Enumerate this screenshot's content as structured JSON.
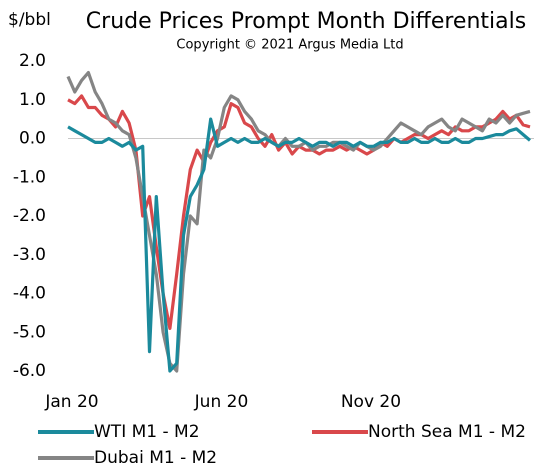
{
  "chart_data": {
    "type": "line",
    "title": "Crude Prices Prompt Month Differentials",
    "subtitle": "Copyright © 2021 Argus Media Ltd",
    "y_label": "$/bbl",
    "categories": [
      "Jan 20",
      null,
      null,
      null,
      null,
      null,
      null,
      null,
      null,
      null,
      null,
      null,
      null,
      null,
      null,
      null,
      null,
      null,
      null,
      null,
      null,
      null,
      "Jun 20",
      null,
      null,
      null,
      null,
      null,
      null,
      null,
      null,
      null,
      null,
      null,
      null,
      null,
      null,
      null,
      null,
      null,
      null,
      null,
      null,
      null,
      "Nov 20",
      null,
      null,
      null,
      null,
      null,
      null,
      null,
      null,
      null,
      null,
      null,
      null,
      null,
      null,
      null,
      null,
      null,
      null,
      null,
      null,
      null,
      null,
      null,
      null
    ],
    "ylim": [
      -6,
      2
    ],
    "yticks": [
      {
        "value": -6,
        "label": "-6.0"
      },
      {
        "value": -5,
        "label": "-5.0"
      },
      {
        "value": -4,
        "label": "-4.0"
      },
      {
        "value": -3,
        "label": "-3.0"
      },
      {
        "value": -2,
        "label": "-2.0"
      },
      {
        "value": -1,
        "label": "-1.0"
      },
      {
        "value": 0,
        "label": "0.0"
      },
      {
        "value": 1,
        "label": "1.0"
      },
      {
        "value": 2,
        "label": "2.0"
      }
    ],
    "grid": false,
    "series": [
      {
        "name": "WTI M1 - M2",
        "color": "#1b8a9c",
        "values": [
          0.3,
          0.2,
          0.1,
          0.0,
          -0.1,
          -0.1,
          0.0,
          -0.1,
          -0.2,
          -0.1,
          -0.3,
          -0.2,
          -5.5,
          -1.5,
          -4.0,
          -6.0,
          -5.8,
          -2.5,
          -1.5,
          -1.2,
          -0.8,
          0.5,
          -0.2,
          -0.1,
          0.0,
          -0.1,
          0.0,
          -0.1,
          -0.1,
          0.0,
          -0.1,
          -0.2,
          -0.1,
          -0.1,
          0.0,
          -0.1,
          -0.2,
          -0.1,
          -0.1,
          -0.2,
          -0.1,
          -0.1,
          -0.2,
          -0.1,
          -0.2,
          -0.2,
          -0.1,
          -0.1,
          0.0,
          -0.1,
          -0.1,
          0.0,
          -0.1,
          -0.1,
          0.0,
          -0.1,
          -0.1,
          0.0,
          -0.1,
          -0.1,
          0.0,
          0.0,
          0.05,
          0.1,
          0.1,
          0.2,
          0.25,
          0.1,
          -0.05
        ]
      },
      {
        "name": "North Sea M1 - M2",
        "color": "#d9484b",
        "values": [
          1.0,
          0.9,
          1.1,
          0.8,
          0.8,
          0.6,
          0.5,
          0.3,
          0.7,
          0.4,
          -0.3,
          -2.0,
          -1.5,
          -2.8,
          -4.0,
          -4.9,
          -3.5,
          -2.0,
          -0.8,
          -0.3,
          -0.6,
          -0.1,
          0.2,
          0.3,
          0.9,
          0.8,
          0.4,
          0.3,
          0.0,
          -0.2,
          0.1,
          -0.3,
          -0.1,
          -0.4,
          -0.2,
          -0.3,
          -0.3,
          -0.4,
          -0.3,
          -0.3,
          -0.2,
          -0.3,
          -0.2,
          -0.3,
          -0.4,
          -0.3,
          -0.1,
          -0.2,
          0.0,
          -0.1,
          0.0,
          0.1,
          0.1,
          0.0,
          0.1,
          0.2,
          0.1,
          0.3,
          0.2,
          0.2,
          0.3,
          0.3,
          0.4,
          0.5,
          0.7,
          0.5,
          0.6,
          0.35,
          0.3
        ]
      },
      {
        "name": "Dubai M1 - M2",
        "color": "#858585",
        "values": [
          1.6,
          1.2,
          1.5,
          1.7,
          1.2,
          0.9,
          0.5,
          0.4,
          0.2,
          0.1,
          -0.5,
          -1.5,
          -2.5,
          -3.5,
          -5.0,
          -5.8,
          -6.0,
          -3.5,
          -2.0,
          -2.2,
          -0.3,
          -0.5,
          0.0,
          0.8,
          1.1,
          1.0,
          0.7,
          0.5,
          0.2,
          0.1,
          -0.1,
          -0.2,
          0.0,
          -0.2,
          -0.2,
          -0.1,
          -0.3,
          -0.2,
          -0.2,
          -0.1,
          -0.1,
          -0.2,
          -0.3,
          -0.1,
          -0.2,
          -0.3,
          -0.2,
          0.0,
          0.2,
          0.4,
          0.3,
          0.2,
          0.1,
          0.3,
          0.4,
          0.5,
          0.3,
          0.2,
          0.5,
          0.4,
          0.3,
          0.2,
          0.5,
          0.4,
          0.6,
          0.4,
          0.6,
          0.65,
          0.7
        ]
      }
    ]
  }
}
